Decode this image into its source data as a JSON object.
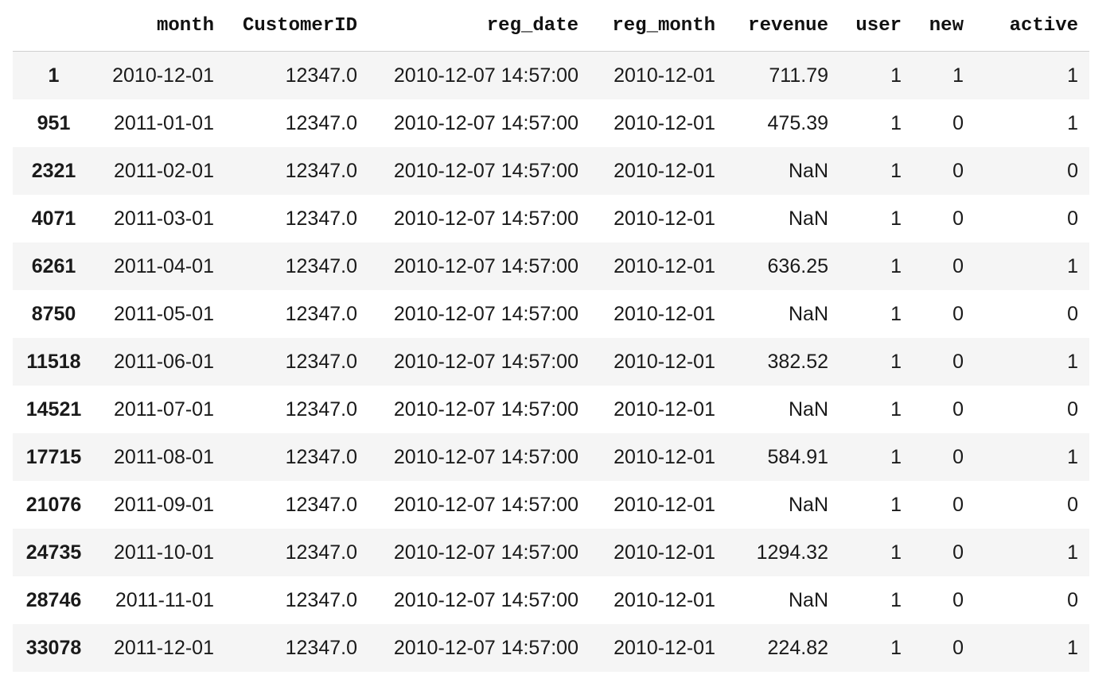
{
  "table": {
    "columns": [
      "",
      "month",
      "CustomerID",
      "reg_date",
      "reg_month",
      "revenue",
      "user",
      "new",
      "active"
    ],
    "rows": [
      {
        "index": "1",
        "month": "2010-12-01",
        "CustomerID": "12347.0",
        "reg_date": "2010-12-07 14:57:00",
        "reg_month": "2010-12-01",
        "revenue": "711.79",
        "user": "1",
        "new": "1",
        "active": "1"
      },
      {
        "index": "951",
        "month": "2011-01-01",
        "CustomerID": "12347.0",
        "reg_date": "2010-12-07 14:57:00",
        "reg_month": "2010-12-01",
        "revenue": "475.39",
        "user": "1",
        "new": "0",
        "active": "1"
      },
      {
        "index": "2321",
        "month": "2011-02-01",
        "CustomerID": "12347.0",
        "reg_date": "2010-12-07 14:57:00",
        "reg_month": "2010-12-01",
        "revenue": "NaN",
        "user": "1",
        "new": "0",
        "active": "0"
      },
      {
        "index": "4071",
        "month": "2011-03-01",
        "CustomerID": "12347.0",
        "reg_date": "2010-12-07 14:57:00",
        "reg_month": "2010-12-01",
        "revenue": "NaN",
        "user": "1",
        "new": "0",
        "active": "0"
      },
      {
        "index": "6261",
        "month": "2011-04-01",
        "CustomerID": "12347.0",
        "reg_date": "2010-12-07 14:57:00",
        "reg_month": "2010-12-01",
        "revenue": "636.25",
        "user": "1",
        "new": "0",
        "active": "1"
      },
      {
        "index": "8750",
        "month": "2011-05-01",
        "CustomerID": "12347.0",
        "reg_date": "2010-12-07 14:57:00",
        "reg_month": "2010-12-01",
        "revenue": "NaN",
        "user": "1",
        "new": "0",
        "active": "0"
      },
      {
        "index": "11518",
        "month": "2011-06-01",
        "CustomerID": "12347.0",
        "reg_date": "2010-12-07 14:57:00",
        "reg_month": "2010-12-01",
        "revenue": "382.52",
        "user": "1",
        "new": "0",
        "active": "1"
      },
      {
        "index": "14521",
        "month": "2011-07-01",
        "CustomerID": "12347.0",
        "reg_date": "2010-12-07 14:57:00",
        "reg_month": "2010-12-01",
        "revenue": "NaN",
        "user": "1",
        "new": "0",
        "active": "0"
      },
      {
        "index": "17715",
        "month": "2011-08-01",
        "CustomerID": "12347.0",
        "reg_date": "2010-12-07 14:57:00",
        "reg_month": "2010-12-01",
        "revenue": "584.91",
        "user": "1",
        "new": "0",
        "active": "1"
      },
      {
        "index": "21076",
        "month": "2011-09-01",
        "CustomerID": "12347.0",
        "reg_date": "2010-12-07 14:57:00",
        "reg_month": "2010-12-01",
        "revenue": "NaN",
        "user": "1",
        "new": "0",
        "active": "0"
      },
      {
        "index": "24735",
        "month": "2011-10-01",
        "CustomerID": "12347.0",
        "reg_date": "2010-12-07 14:57:00",
        "reg_month": "2010-12-01",
        "revenue": "1294.32",
        "user": "1",
        "new": "0",
        "active": "1"
      },
      {
        "index": "28746",
        "month": "2011-11-01",
        "CustomerID": "12347.0",
        "reg_date": "2010-12-07 14:57:00",
        "reg_month": "2010-12-01",
        "revenue": "NaN",
        "user": "1",
        "new": "0",
        "active": "0"
      },
      {
        "index": "33078",
        "month": "2011-12-01",
        "CustomerID": "12347.0",
        "reg_date": "2010-12-07 14:57:00",
        "reg_month": "2010-12-01",
        "revenue": "224.82",
        "user": "1",
        "new": "0",
        "active": "1"
      }
    ]
  },
  "colors": {
    "stripe": "#f5f5f5",
    "header_rule": "#cfcfcf",
    "text": "#1a1a1a"
  }
}
